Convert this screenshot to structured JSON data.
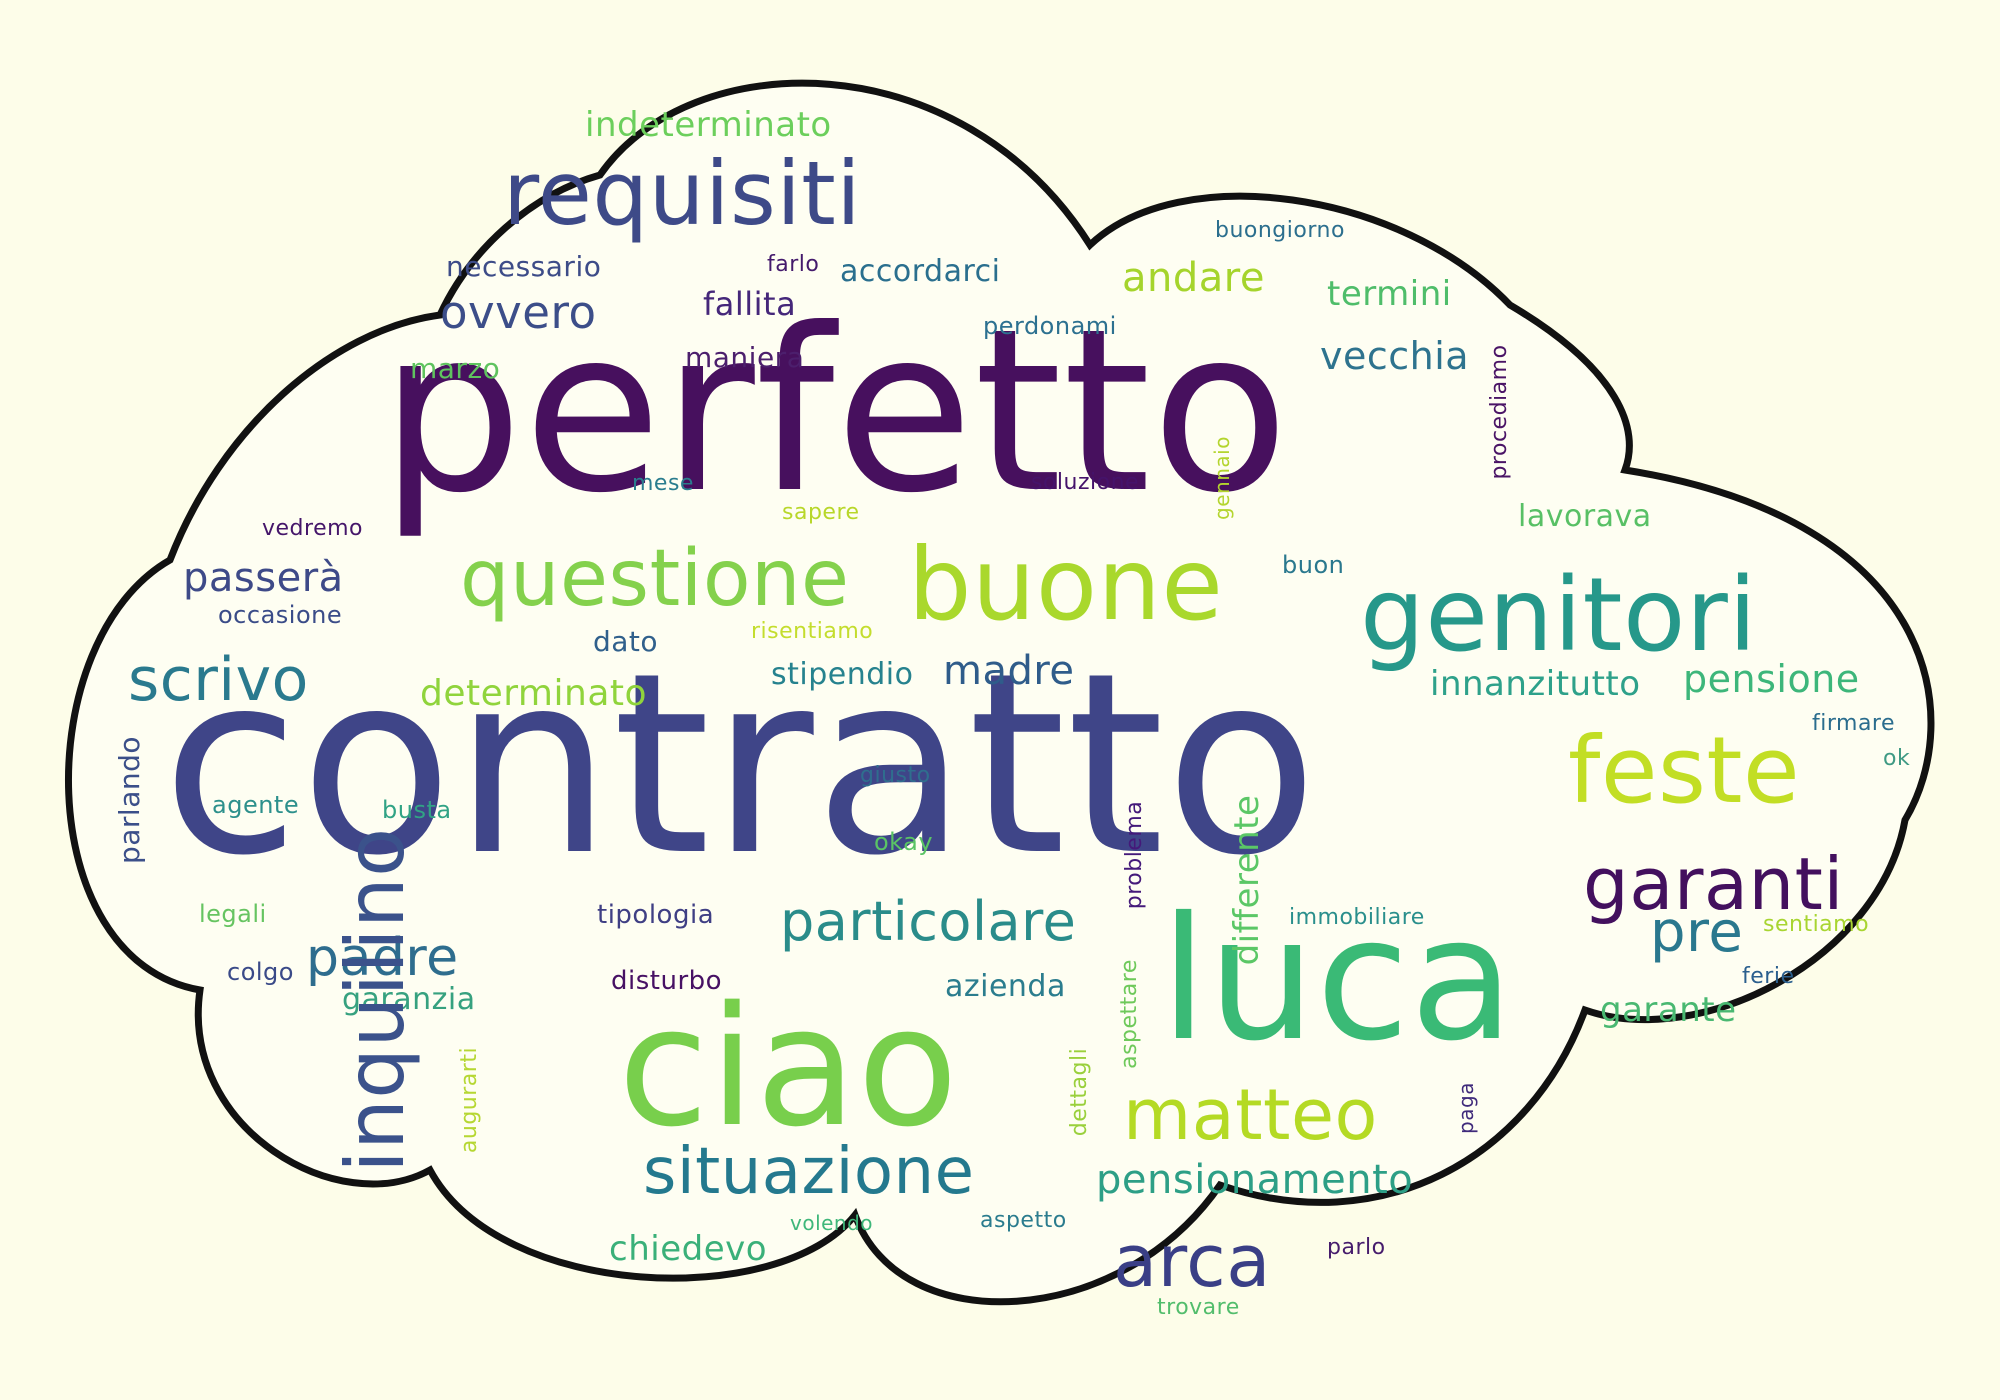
{
  "words": [
    {
      "text": "contratto",
      "color": "#3f4588",
      "rank": 1
    },
    {
      "text": "perfetto",
      "color": "#47105e",
      "rank": 2
    },
    {
      "text": "luca",
      "color": "#3aba76",
      "rank": 3
    },
    {
      "text": "ciao",
      "color": "#78cf4c",
      "rank": 4
    },
    {
      "text": "genitori",
      "color": "#26988a",
      "rank": 5
    },
    {
      "text": "buone",
      "color": "#a9d82c",
      "rank": 6
    },
    {
      "text": "requisiti",
      "color": "#3e4a88",
      "rank": 7
    },
    {
      "text": "feste",
      "color": "#c2de24",
      "rank": 8
    },
    {
      "text": "questione",
      "color": "#84d14c",
      "rank": 9
    },
    {
      "text": "garanti",
      "color": "#43105e",
      "rank": 10
    },
    {
      "text": "inquilino",
      "color": "#3b528b",
      "rank": 11
    },
    {
      "text": "matteo",
      "color": "#b4da24",
      "rank": 12
    },
    {
      "text": "situazione",
      "color": "#24798e",
      "rank": 13
    },
    {
      "text": "arca",
      "color": "#3a3f86",
      "rank": 14
    },
    {
      "text": "scrivo",
      "color": "#2a7a8e",
      "rank": 15
    },
    {
      "text": "particolare",
      "color": "#2a8c8a",
      "rank": 16
    },
    {
      "text": "padre",
      "color": "#2e6d8e",
      "rank": 17
    },
    {
      "text": "pre",
      "color": "#2a788e",
      "rank": 18
    },
    {
      "text": "ovvero",
      "color": "#3c4e89",
      "rank": 19
    },
    {
      "text": "pensionamento",
      "color": "#2d9f86",
      "rank": 20
    },
    {
      "text": "andare",
      "color": "#a5d42c",
      "rank": 21
    },
    {
      "text": "madre",
      "color": "#2f5c8a",
      "rank": 22
    },
    {
      "text": "pensione",
      "color": "#3db67a",
      "rank": 23
    },
    {
      "text": "vecchia",
      "color": "#2e738e",
      "rank": 24
    },
    {
      "text": "innanzitutto",
      "color": "#2ea18a",
      "rank": 25
    },
    {
      "text": "determinato",
      "color": "#90d43c",
      "rank": 26
    },
    {
      "text": "indeterminato",
      "color": "#6ccf5c",
      "rank": 27
    },
    {
      "text": "passerà",
      "color": "#3e4a88",
      "rank": 28
    },
    {
      "text": "chiedevo",
      "color": "#3ab079",
      "rank": 29
    },
    {
      "text": "termini",
      "color": "#4fbd6a",
      "rank": 30
    },
    {
      "text": "garante",
      "color": "#49b871",
      "rank": 31
    },
    {
      "text": "lavorava",
      "color": "#58c065",
      "rank": 32
    },
    {
      "text": "differente",
      "color": "#5bc766",
      "rank": 33
    },
    {
      "text": "fallita",
      "color": "#45277a",
      "rank": 34
    },
    {
      "text": "accordarci",
      "color": "#2a6f8e",
      "rank": 35
    },
    {
      "text": "necessario",
      "color": "#3d4c88",
      "rank": 36
    },
    {
      "text": "garanzia",
      "color": "#36a17f",
      "rank": 37
    },
    {
      "text": "stipendio",
      "color": "#26828e",
      "rank": 38
    },
    {
      "text": "azienda",
      "color": "#2b7d8e",
      "rank": 39
    },
    {
      "text": "marzo",
      "color": "#5fc35f",
      "rank": 40
    },
    {
      "text": "maniera",
      "color": "#4c1f6d",
      "rank": 41
    },
    {
      "text": "dato",
      "color": "#30608c",
      "rank": 42
    },
    {
      "text": "parlando",
      "color": "#3b4f89",
      "rank": 43
    },
    {
      "text": "tipologia",
      "color": "#3f3f84",
      "rank": 44
    },
    {
      "text": "disturbo",
      "color": "#471164",
      "rank": 45
    },
    {
      "text": "perdonami",
      "color": "#2d7190",
      "rank": 46
    },
    {
      "text": "colgo",
      "color": "#3a4a88",
      "rank": 47
    },
    {
      "text": "occasione",
      "color": "#3a4c88",
      "rank": 48
    },
    {
      "text": "vedremo",
      "color": "#45166a",
      "rank": 49
    },
    {
      "text": "soluzione",
      "color": "#45136a",
      "rank": 50
    },
    {
      "text": "mese",
      "color": "#2a7d8e",
      "rank": 51
    },
    {
      "text": "sapere",
      "color": "#b8d72a",
      "rank": 52
    },
    {
      "text": "risentiamo",
      "color": "#c4dd2e",
      "rank": 53
    },
    {
      "text": "buongiorno",
      "color": "#2c6f8e",
      "rank": 54
    },
    {
      "text": "farlo",
      "color": "#441a6c",
      "rank": 55
    },
    {
      "text": "buon",
      "color": "#2a788e",
      "rank": 56
    },
    {
      "text": "agente",
      "color": "#2d908c",
      "rank": 57
    },
    {
      "text": "busta",
      "color": "#31a385",
      "rank": 58
    },
    {
      "text": "giusto",
      "color": "#2f6e8e",
      "rank": 59
    },
    {
      "text": "okay",
      "color": "#5ac465",
      "rank": 60
    },
    {
      "text": "legali",
      "color": "#66c461",
      "rank": 61
    },
    {
      "text": "problema",
      "color": "#44197a",
      "rank": 62
    },
    {
      "text": "immobiliare",
      "color": "#2a8f8c",
      "rank": 63
    },
    {
      "text": "sentiamo",
      "color": "#a8d531",
      "rank": 64
    },
    {
      "text": "ferie",
      "color": "#2b5f8e",
      "rank": 65
    },
    {
      "text": "firmare",
      "color": "#2b6d8e",
      "rank": 66
    },
    {
      "text": "ok",
      "color": "#3f9a84",
      "rank": 67
    },
    {
      "text": "procediamo",
      "color": "#4a1466",
      "rank": 68
    },
    {
      "text": "gennaio",
      "color": "#b4d52e",
      "rank": 69
    },
    {
      "text": "augurarti",
      "color": "#b6d733",
      "rank": 70
    },
    {
      "text": "dettagli",
      "color": "#9ad03c",
      "rank": 71
    },
    {
      "text": "aspettare",
      "color": "#6ec95a",
      "rank": 72
    },
    {
      "text": "paga",
      "color": "#3f2a7b",
      "rank": 73
    },
    {
      "text": "volendo",
      "color": "#3fb77a",
      "rank": 74
    },
    {
      "text": "aspetto",
      "color": "#2b7c8e",
      "rank": 75
    },
    {
      "text": "parlo",
      "color": "#461c6c",
      "rank": 76
    },
    {
      "text": "trovare",
      "color": "#52bd6c",
      "rank": 77
    }
  ]
}
